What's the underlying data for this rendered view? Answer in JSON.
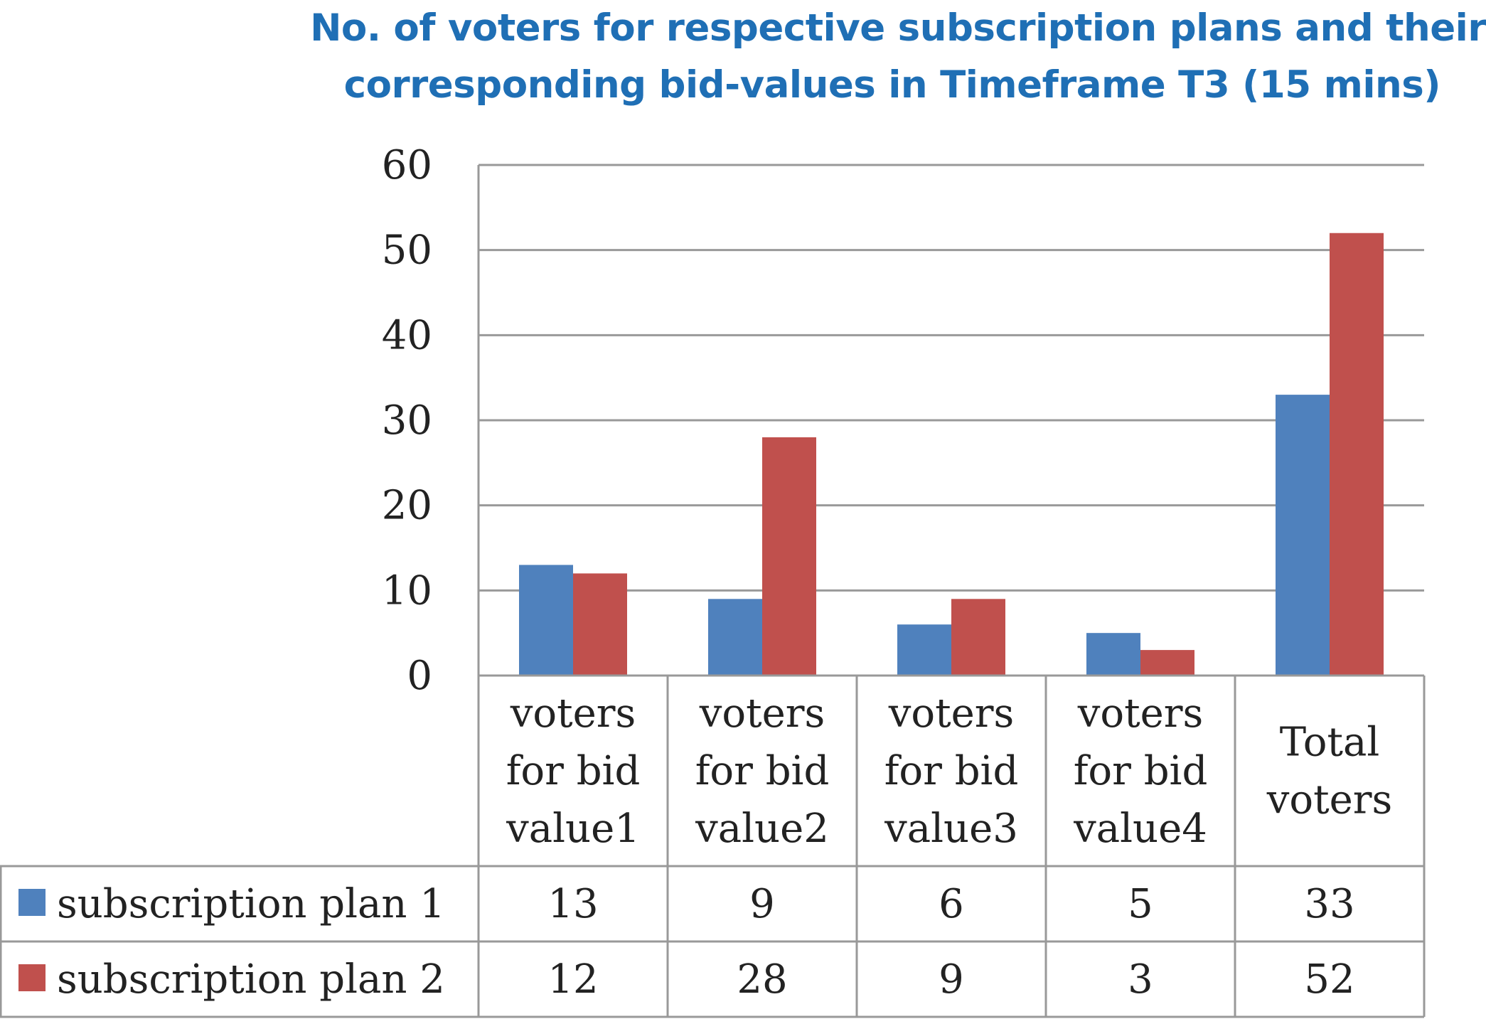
{
  "chart_data": {
    "type": "bar",
    "title_lines": [
      "No. of voters for respective subscription plans and their",
      "corresponding bid-values in Timeframe T3 (15 mins)"
    ],
    "categories": [
      [
        "voters",
        "for bid",
        "value1"
      ],
      [
        "voters",
        "for bid",
        "value2"
      ],
      [
        "voters",
        "for bid",
        "value3"
      ],
      [
        "voters",
        "for bid",
        "value4"
      ],
      [
        "Total",
        "voters"
      ]
    ],
    "series": [
      {
        "name": "subscription plan 1",
        "color": "#4f81bd",
        "values": [
          13,
          9,
          6,
          5,
          33
        ]
      },
      {
        "name": "subscription plan 2",
        "color": "#c0504d",
        "values": [
          12,
          28,
          9,
          3,
          52
        ]
      }
    ],
    "yticks": [
      0,
      10,
      20,
      30,
      40,
      50,
      60
    ],
    "ylim": [
      0,
      60
    ],
    "grid": true,
    "legend": "data table below chart"
  }
}
